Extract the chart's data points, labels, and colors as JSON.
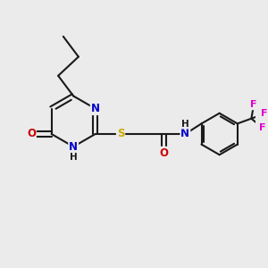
{
  "bg_color": "#ebebeb",
  "bond_color": "#1a1a1a",
  "line_width": 1.5,
  "atom_colors": {
    "N": "#0000cc",
    "O": "#cc0000",
    "S": "#ccaa00",
    "F": "#dd00cc",
    "H": "#1a1a1a",
    "C": "#1a1a1a"
  },
  "font_size": 8.5,
  "figsize": [
    3.0,
    3.0
  ],
  "dpi": 100
}
